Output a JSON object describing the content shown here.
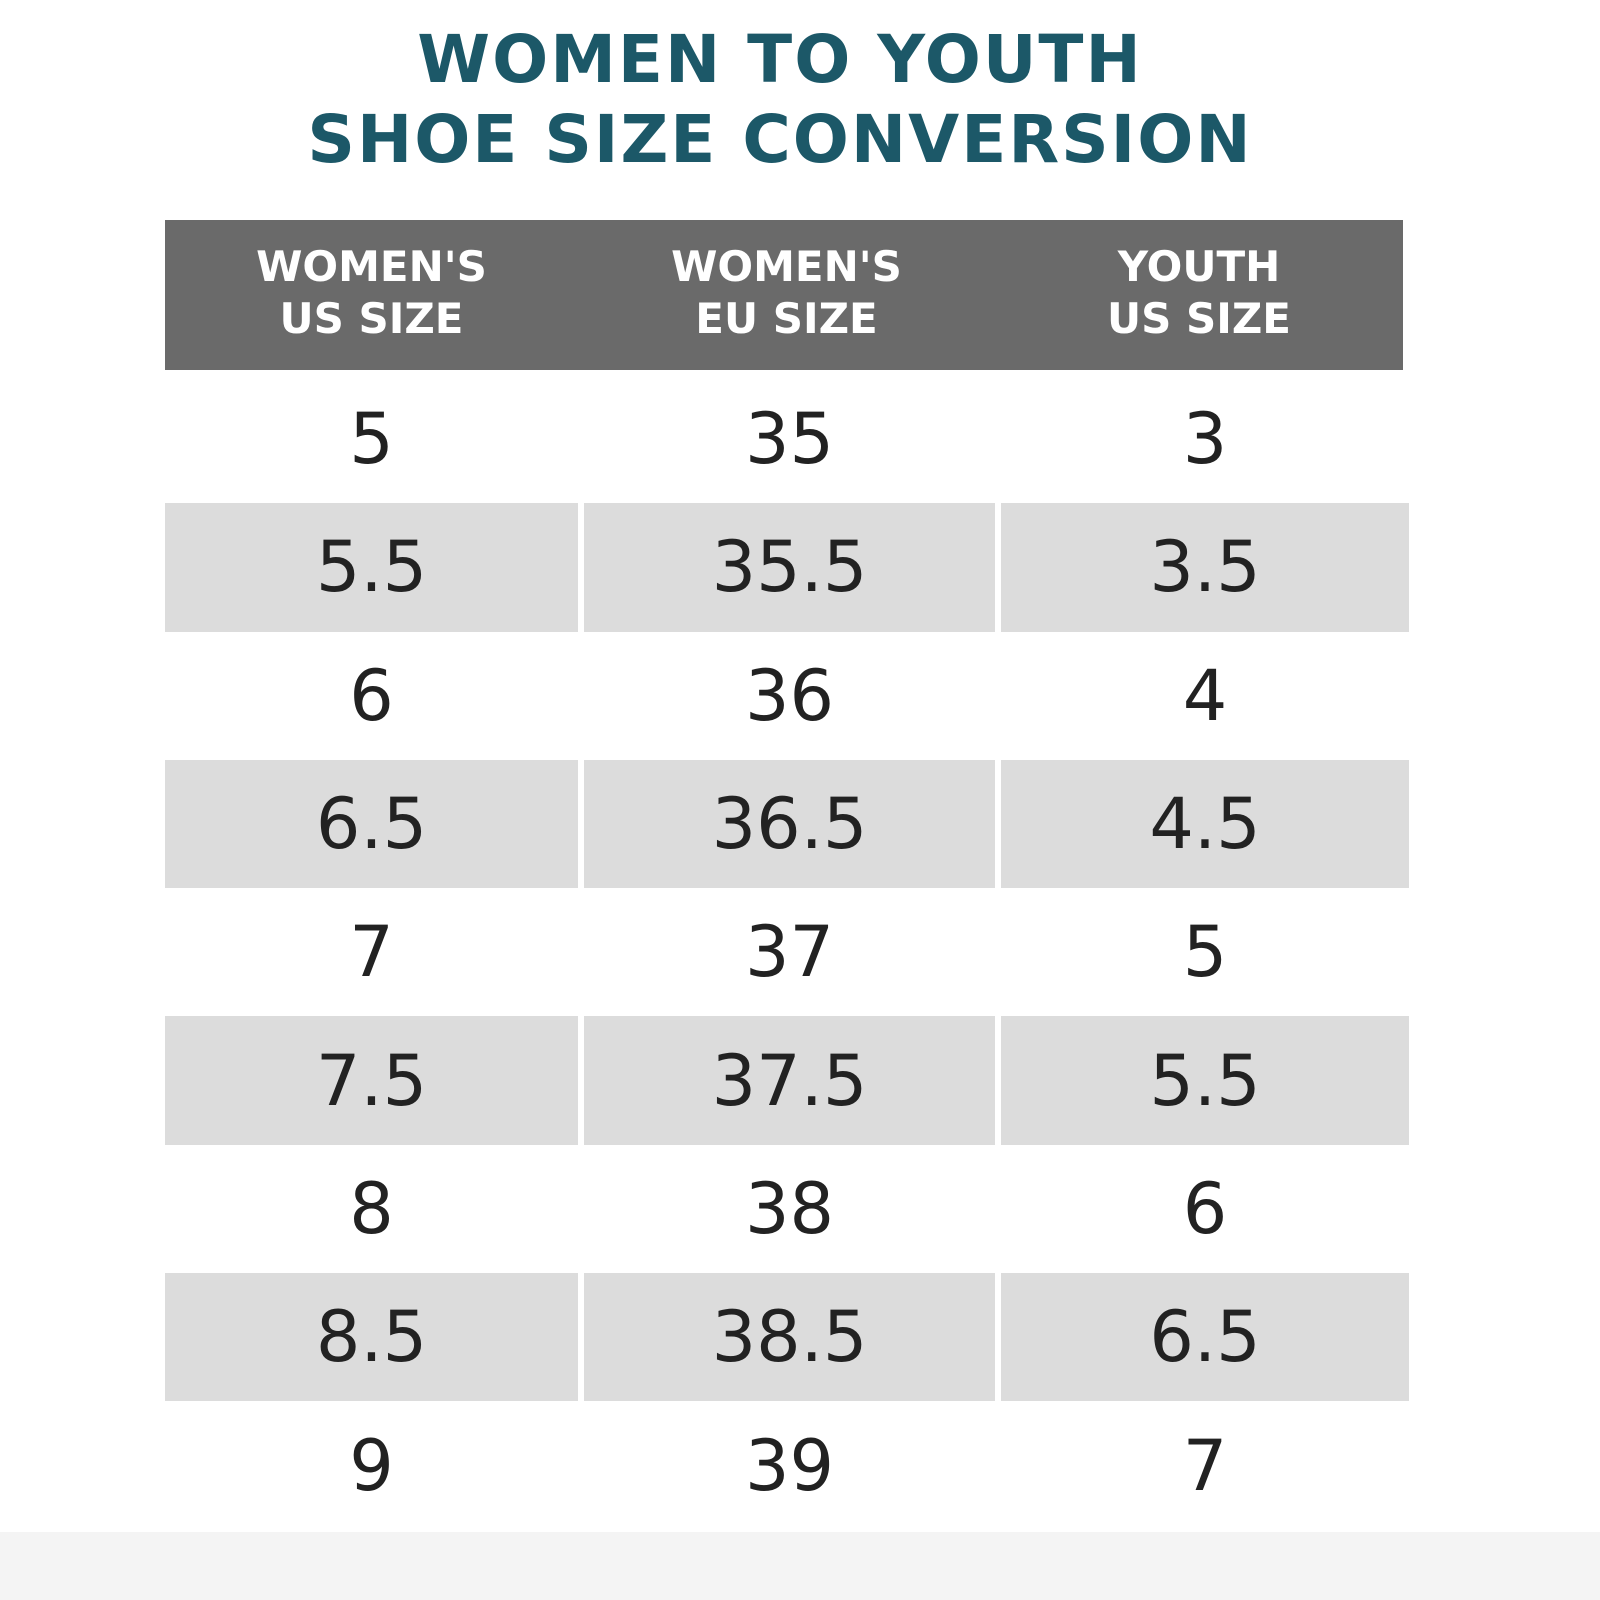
{
  "title": {
    "lines": [
      "WOMEN TO YOUTH",
      "SHOE SIZE CONVERSION"
    ]
  },
  "table": {
    "header": [
      [
        "WOMEN'S",
        "US SIZE"
      ],
      [
        "WOMEN'S",
        "EU SIZE"
      ],
      [
        "YOUTH",
        "US SIZE"
      ]
    ],
    "rows": [
      [
        "5",
        "35",
        "3"
      ],
      [
        "5.5",
        "35.5",
        "3.5"
      ],
      [
        "6",
        "36",
        "4"
      ],
      [
        "6.5",
        "36.5",
        "4.5"
      ],
      [
        "7",
        "37",
        "5"
      ],
      [
        "7.5",
        "37.5",
        "5.5"
      ],
      [
        "8",
        "38",
        "6"
      ],
      [
        "8.5",
        "38.5",
        "6.5"
      ],
      [
        "9",
        "39",
        "7"
      ]
    ]
  }
}
